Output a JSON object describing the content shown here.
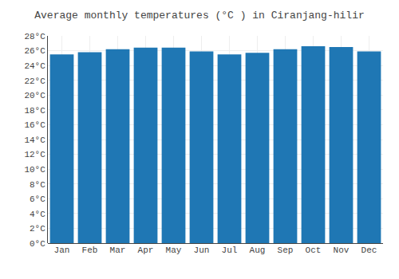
{
  "chart_data": {
    "type": "bar",
    "title": "Average monthly temperatures (°C ) in Ciranjang-hilir",
    "categories": [
      "Jan",
      "Feb",
      "Mar",
      "Apr",
      "May",
      "Jun",
      "Jul",
      "Aug",
      "Sep",
      "Oct",
      "Nov",
      "Dec"
    ],
    "values": [
      25.5,
      25.8,
      26.2,
      26.4,
      26.4,
      25.9,
      25.5,
      25.7,
      26.2,
      26.6,
      26.5,
      25.9
    ],
    "ylim": [
      0,
      28
    ],
    "yticks": [
      {
        "value": 0,
        "label": "0°C"
      },
      {
        "value": 2,
        "label": "2°C"
      },
      {
        "value": 4,
        "label": "4°C"
      },
      {
        "value": 6,
        "label": "6°C"
      },
      {
        "value": 8,
        "label": "8°C"
      },
      {
        "value": 10,
        "label": "10°C"
      },
      {
        "value": 12,
        "label": "12°C"
      },
      {
        "value": 14,
        "label": "14°C"
      },
      {
        "value": 16,
        "label": "16°C"
      },
      {
        "value": 18,
        "label": "18°C"
      },
      {
        "value": 20,
        "label": "20°C"
      },
      {
        "value": 22,
        "label": "22°C"
      },
      {
        "value": 24,
        "label": "24°C"
      },
      {
        "value": 26,
        "label": "26°C"
      },
      {
        "value": 28,
        "label": "28°C"
      }
    ],
    "grid": true
  }
}
